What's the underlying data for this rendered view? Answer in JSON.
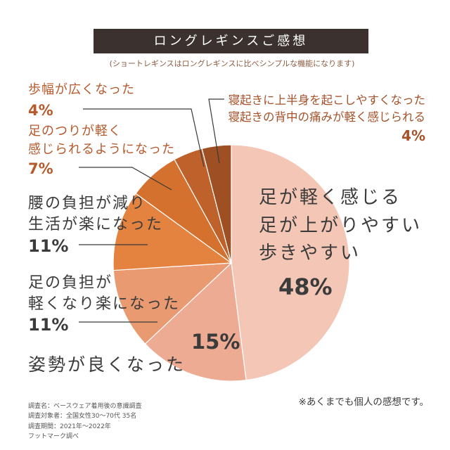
{
  "chart_data": {
    "type": "pie",
    "title": "ロングレギンスご感想",
    "subtitle": "(ショートレギンスはロングレギンスに比べシンプルな機能になります)",
    "slices": [
      {
        "label": [
          "足が軽く感じる",
          "足が上がりやすい",
          "歩きやすい"
        ],
        "value": 48,
        "value_label": "48%",
        "color": "#f3c6b6"
      },
      {
        "label": [
          "姿勢が良くなった"
        ],
        "value": 15,
        "value_label": "15%",
        "color": "#eeab93"
      },
      {
        "label": [
          "足の負担が",
          "軽くなり楽になった"
        ],
        "value": 11,
        "value_label": "11%",
        "color": "#e99a71"
      },
      {
        "label": [
          "腰の負担が減り",
          "生活が楽になった"
        ],
        "value": 11,
        "value_label": "11%",
        "color": "#e4833f"
      },
      {
        "label": [
          "足のつりが軽く",
          "感じられるようになった"
        ],
        "value": 7,
        "value_label": "7%",
        "color": "#d4712f"
      },
      {
        "label": [
          "歩幅が広くなった"
        ],
        "value": 4,
        "value_label": "4%",
        "color": "#bf612b"
      },
      {
        "label": [
          "寝起きに上半身を起こしやすくなった",
          "寝起きの背中の痛みが軽く感じられる"
        ],
        "value": 4,
        "value_label": "4%",
        "color": "#9e5024"
      }
    ]
  },
  "survey_info": [
    "調査名：ベースウェア着用後の意識調査",
    "調査対象者：全国女性30〜70代 35名",
    "調査期間：2021年〜2022年",
    "フットマーク調べ"
  ],
  "note": "※あくまでも個人の感想です。"
}
